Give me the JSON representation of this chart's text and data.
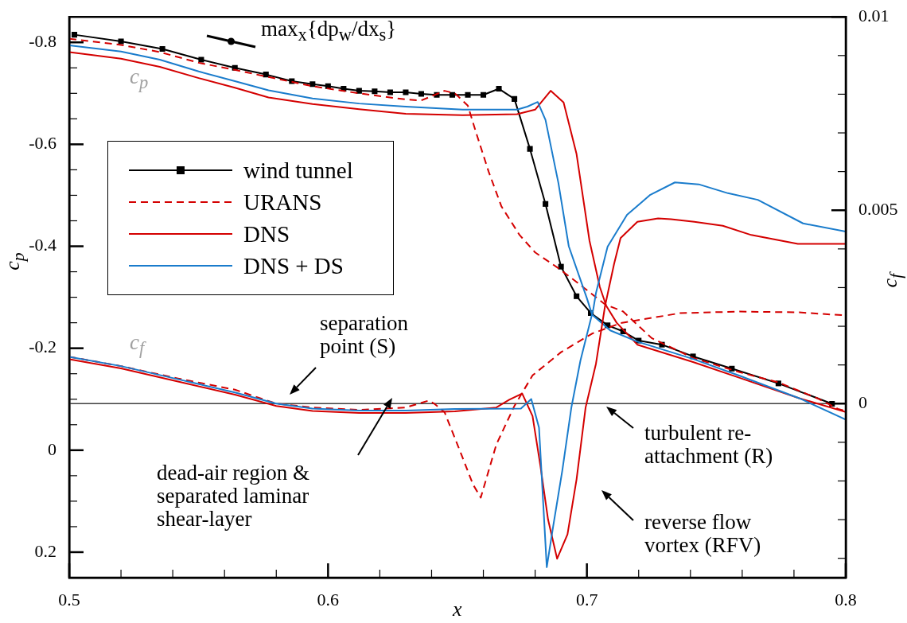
{
  "chart_data": {
    "type": "line",
    "xlabel": "x",
    "ylabel": "c$_{p}$",
    "y2label": "c$_{f}$",
    "xlim": [
      0.5,
      0.8
    ],
    "xticks": [
      0.5,
      {
        "value": 0.52,
        "label": null
      },
      {
        "value": 0.54,
        "label": null
      },
      {
        "value": 0.56,
        "label": null
      },
      {
        "value": 0.58,
        "label": null
      },
      0.6,
      {
        "value": 0.62,
        "label": null
      },
      {
        "value": 0.64,
        "label": null
      },
      {
        "value": 0.66,
        "label": null
      },
      {
        "value": 0.68,
        "label": null
      },
      0.7,
      {
        "value": 0.72,
        "label": null
      },
      {
        "value": 0.74,
        "label": null
      },
      {
        "value": 0.76,
        "label": null
      },
      {
        "value": 0.78,
        "label": null
      },
      0.8
    ],
    "ylim": [
      0.25,
      -0.85
    ],
    "yticks": [
      {
        "value": 0.25,
        "label": null
      },
      0.2,
      {
        "value": 0.15,
        "label": null
      },
      {
        "value": 0.1,
        "label": null
      },
      {
        "value": 0.05,
        "label": null
      },
      0,
      {
        "value": -0.05,
        "label": null
      },
      {
        "value": -0.1,
        "label": null
      },
      {
        "value": -0.15,
        "label": null
      },
      -0.2,
      {
        "value": -0.25,
        "label": null
      },
      {
        "value": -0.3,
        "label": null
      },
      {
        "value": -0.35,
        "label": null
      },
      -0.4,
      {
        "value": -0.45,
        "label": null
      },
      {
        "value": -0.5,
        "label": null
      },
      {
        "value": -0.55,
        "label": null
      },
      -0.6,
      {
        "value": -0.65,
        "label": null
      },
      {
        "value": -0.7,
        "label": null
      },
      {
        "value": -0.75,
        "label": null
      },
      -0.8
    ],
    "y2lim": [
      -0.0045,
      0.01
    ],
    "y2ticks": [
      {
        "value": -0.004,
        "label": null
      },
      {
        "value": -0.003,
        "label": null
      },
      {
        "value": -0.002,
        "label": null
      },
      {
        "value": -0.001,
        "label": null
      },
      0,
      {
        "value": 0.001,
        "label": null
      },
      {
        "value": 0.002,
        "label": null
      },
      {
        "value": 0.003,
        "label": null
      },
      {
        "value": 0.004,
        "label": null
      },
      0.005,
      {
        "value": 0.006,
        "label": null
      },
      {
        "value": 0.007,
        "label": null
      },
      {
        "value": 0.008,
        "label": null
      },
      {
        "value": 0.009,
        "label": null
      },
      0.01
    ],
    "grid": false,
    "legend": "left",
    "ref_lines": [
      {
        "axis": "y2",
        "value": 0,
        "color": "#404040"
      }
    ],
    "series": [
      {
        "name": "wind tunnel",
        "color": "#000000",
        "marker": "square",
        "line_style": "solid",
        "x": [
          0.502,
          0.52,
          0.536,
          0.551,
          0.564,
          0.576,
          0.586,
          0.594,
          0.6,
          0.606,
          0.612,
          0.618,
          0.624,
          0.63,
          0.636,
          0.642,
          0.648,
          0.654,
          0.66,
          0.666,
          0.672,
          0.678,
          0.684,
          0.69,
          0.696,
          0.7015,
          0.708,
          0.714,
          0.72,
          0.729,
          0.741,
          0.756,
          0.774,
          0.7947
        ],
        "values": [
          -0.815,
          -0.802,
          -0.787,
          -0.766,
          -0.75,
          -0.737,
          -0.724,
          -0.718,
          -0.714,
          -0.709,
          -0.705,
          -0.704,
          -0.702,
          -0.702,
          -0.699,
          -0.697,
          -0.697,
          -0.697,
          -0.697,
          -0.709,
          -0.689,
          -0.591,
          -0.483,
          -0.36,
          -0.302,
          -0.269,
          -0.245,
          -0.233,
          -0.215,
          -0.207,
          -0.184,
          -0.16,
          -0.131,
          -0.091
        ]
      },
      {
        "name": "URANS",
        "color": "#d40000",
        "marker": "none",
        "line_style": "dashed",
        "x": [
          0.5,
          0.52,
          0.535,
          0.55,
          0.564,
          0.577,
          0.594,
          0.612,
          0.63,
          0.636,
          0.645,
          0.649,
          0.654,
          0.657,
          0.662,
          0.667,
          0.674,
          0.68,
          0.689,
          0.697,
          0.707,
          0.714,
          0.725,
          0.741,
          0.759,
          0.774,
          0.789,
          0.797,
          0.8
        ],
        "values": [
          -0.807,
          -0.795,
          -0.781,
          -0.76,
          -0.746,
          -0.732,
          -0.714,
          -0.7,
          -0.688,
          -0.686,
          -0.705,
          -0.7,
          -0.676,
          -0.626,
          -0.547,
          -0.478,
          -0.422,
          -0.388,
          -0.357,
          -0.326,
          -0.286,
          -0.272,
          -0.22,
          -0.181,
          -0.153,
          -0.133,
          -0.102,
          -0.081,
          -0.077
        ]
      },
      {
        "name": "DNS",
        "color": "#d40000",
        "marker": "none",
        "line_style": "solid",
        "x": [
          0.5,
          0.52,
          0.535,
          0.55,
          0.564,
          0.577,
          0.594,
          0.612,
          0.63,
          0.652,
          0.673,
          0.68,
          0.686,
          0.691,
          0.696,
          0.701,
          0.705,
          0.7075,
          0.7115,
          0.7195,
          0.741,
          0.759,
          0.782,
          0.8
        ],
        "values": [
          -0.781,
          -0.768,
          -0.752,
          -0.73,
          -0.711,
          -0.692,
          -0.679,
          -0.669,
          -0.66,
          -0.657,
          -0.659,
          -0.668,
          -0.705,
          -0.682,
          -0.581,
          -0.411,
          -0.32,
          -0.283,
          -0.25,
          -0.207,
          -0.173,
          -0.142,
          -0.102,
          -0.075
        ]
      },
      {
        "name": "DNS + DS",
        "color": "#1a7ccc",
        "marker": "none",
        "line_style": "solid",
        "x": [
          0.5,
          0.52,
          0.535,
          0.55,
          0.564,
          0.577,
          0.594,
          0.612,
          0.63,
          0.652,
          0.673,
          0.677,
          0.681,
          0.684,
          0.689,
          0.693,
          0.7,
          0.702,
          0.709,
          0.7195,
          0.741,
          0.759,
          0.782,
          0.8
        ],
        "values": [
          -0.794,
          -0.782,
          -0.766,
          -0.743,
          -0.724,
          -0.706,
          -0.69,
          -0.68,
          -0.674,
          -0.668,
          -0.668,
          -0.674,
          -0.683,
          -0.648,
          -0.524,
          -0.4,
          -0.298,
          -0.266,
          -0.235,
          -0.213,
          -0.179,
          -0.146,
          -0.102,
          -0.06
        ]
      },
      {
        "color": "#d40000",
        "axis": "y2",
        "marker": "none",
        "line_style": "dashed",
        "x": [
          0.5,
          0.52,
          0.542,
          0.564,
          0.58,
          0.594,
          0.612,
          0.63,
          0.639,
          0.641,
          0.645,
          0.651,
          0.656,
          0.659,
          0.665,
          0.672,
          0.679,
          0.69,
          0.702,
          0.713,
          0.736,
          0.759,
          0.782,
          0.8
        ],
        "values": [
          0.00121,
          0.00097,
          0.00065,
          0.00036,
          0,
          -0.0001,
          -0.00016,
          -0.0001,
          8e-05,
          0,
          -0.00022,
          -0.00123,
          -0.00209,
          -0.00243,
          -0.00106,
          -6e-05,
          0.00073,
          0.00133,
          0.00181,
          0.00208,
          0.00234,
          0.00238,
          0.00236,
          0.00228
        ]
      },
      {
        "color": "#d40000",
        "axis": "y2",
        "marker": "none",
        "line_style": "solid",
        "x": [
          0.5,
          0.52,
          0.542,
          0.564,
          0.58,
          0.594,
          0.612,
          0.63,
          0.649,
          0.665,
          0.67,
          0.675,
          0.679,
          0.682,
          0.685,
          0.6885,
          0.6925,
          0.696,
          0.6995,
          0.7035,
          0.707,
          0.7105,
          0.713,
          0.7195,
          0.7275,
          0.7325,
          0.7415,
          0.7525,
          0.7635,
          0.7815,
          0.8
        ],
        "values": [
          0.00115,
          0.00091,
          0.00057,
          0.00023,
          -6e-05,
          -0.00019,
          -0.00024,
          -0.00024,
          -0.0002,
          -0.0001,
          0.0001,
          0.00026,
          -0.00032,
          -0.00159,
          -0.003,
          -0.00401,
          -0.00338,
          -0.00196,
          -0.0001,
          0.00103,
          0.00252,
          0.00361,
          0.00428,
          0.0047,
          0.00479,
          0.00477,
          0.0047,
          0.0046,
          0.00436,
          0.00413,
          0.00413
        ]
      },
      {
        "color": "#1a7ccc",
        "axis": "y2",
        "marker": "none",
        "line_style": "solid",
        "x": [
          0.5,
          0.52,
          0.542,
          0.564,
          0.58,
          0.594,
          0.612,
          0.63,
          0.649,
          0.6745,
          0.6785,
          0.6815,
          0.6845,
          0.687,
          0.6905,
          0.694,
          0.6975,
          0.7025,
          0.7035,
          0.708,
          0.7155,
          0.7245,
          0.734,
          0.7432,
          0.7545,
          0.766,
          0.7835,
          0.8
        ],
        "values": [
          0.00121,
          0.00097,
          0.00063,
          0.00029,
          0,
          -0.00013,
          -0.00018,
          -0.00018,
          -0.00014,
          -0.00013,
          0.00012,
          -0.00062,
          -0.00423,
          -0.00316,
          -0.00173,
          -0.0001,
          0.00111,
          0.00245,
          0.00286,
          0.00406,
          0.00488,
          0.0054,
          0.00572,
          0.00567,
          0.00544,
          0.00527,
          0.00466,
          0.00445
        ]
      }
    ],
    "annotations": [
      "c$_{p}$",
      "c$_{f}$",
      "max$_{x}${dp$_{w}$/dx$_{s}$}",
      "separation point (S)",
      "dead-air region & separated laminar shear-layer",
      "turbulent re-attachment (R)",
      "reverse flow vortex (RFV)"
    ]
  }
}
